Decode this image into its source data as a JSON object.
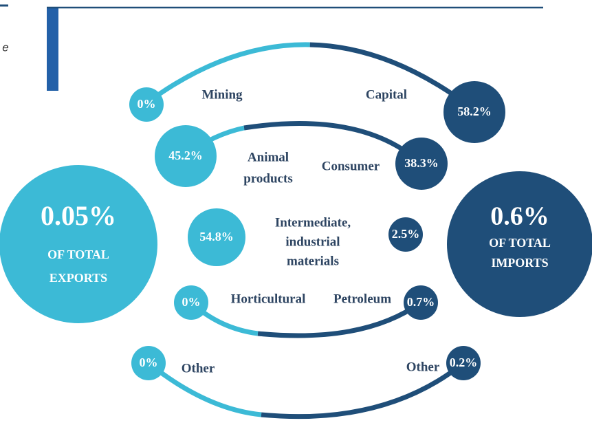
{
  "fragment": "e",
  "exports": {
    "value": "0.05%",
    "label_lines": [
      "OF TOTAL",
      "EXPORTS"
    ]
  },
  "imports": {
    "value": "0.6%",
    "label_lines": [
      "OF TOTAL",
      "IMPORTS"
    ]
  },
  "rows": [
    {
      "export_label": [
        "Mining"
      ],
      "export_value": "0%",
      "import_label": [
        "Capital"
      ],
      "import_value": "58.2%"
    },
    {
      "export_label": [
        "Animal",
        "products"
      ],
      "export_value": "45.2%",
      "import_label": [
        "Consumer"
      ],
      "import_value": "38.3%"
    },
    {
      "shared_label": [
        "Intermediate,",
        "industrial",
        "materials"
      ],
      "export_value": "54.8%",
      "import_value": "2.5%"
    },
    {
      "export_label": [
        "Horticultural"
      ],
      "export_value": "0%",
      "import_label": [
        "Petroleum"
      ],
      "import_value": "0.7%"
    },
    {
      "export_label": [
        "Other"
      ],
      "export_value": "0%",
      "import_label": [
        "Other"
      ],
      "import_value": "0.2%"
    }
  ]
}
